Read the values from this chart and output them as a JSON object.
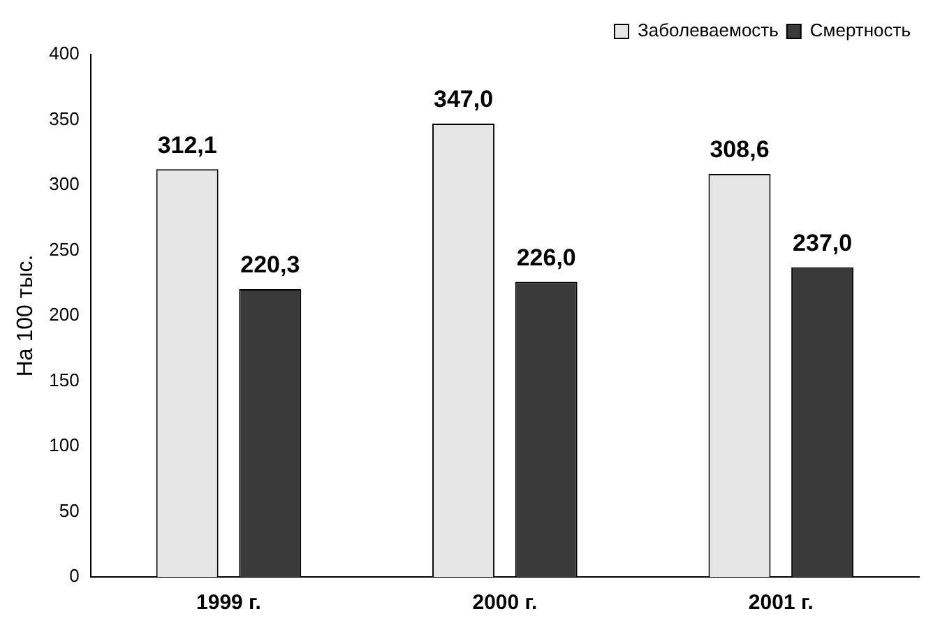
{
  "chart_data": {
    "type": "bar",
    "ylabel": "На 100 тыс.",
    "categories": [
      "1999 г.",
      "2000 г.",
      "2001 г."
    ],
    "series": [
      {
        "name": "Заболеваемость",
        "color": "#e6e6e6",
        "values": [
          312.1,
          347.0,
          308.6
        ],
        "value_labels": [
          "312,1",
          "347,0",
          "308,6"
        ]
      },
      {
        "name": "Смертность",
        "color": "#3a3a3a",
        "values": [
          220.3,
          226.0,
          237.0
        ],
        "value_labels": [
          "220,3",
          "226,0",
          "237,0"
        ]
      }
    ],
    "ylim": [
      0,
      400
    ],
    "yticks": [
      0,
      50,
      100,
      150,
      200,
      250,
      300,
      350,
      400
    ],
    "grid": false,
    "legend": "top right"
  }
}
